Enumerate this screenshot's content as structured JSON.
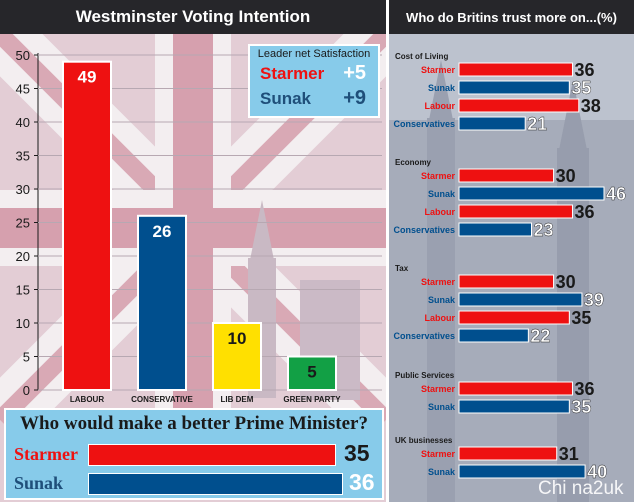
{
  "left_title": "Westminster Voting Intention",
  "right_title": "Who do Britins trust more on...(%)",
  "colors": {
    "labour": "#ee1111",
    "conservative": "#004f8e",
    "libdem": "#ffe000",
    "green": "#12a045",
    "header": "#26262a",
    "box": "#87cbea"
  },
  "satisfaction": {
    "title": "Leader net Satisfaction",
    "rows": [
      {
        "name": "Starmer",
        "value": "+5",
        "color": "#ee1111"
      },
      {
        "name": "Sunak",
        "value": "+9",
        "color": "#1f4f7a"
      }
    ]
  },
  "best_pm": {
    "title": "Who would make a better Prime Minister?",
    "rows": [
      {
        "name": "Starmer",
        "value": 35,
        "color": "#ee1111"
      },
      {
        "name": "Sunak",
        "value": 36,
        "color": "#004f8e"
      }
    ]
  },
  "watermark": "Chi na2uk",
  "chart_data": [
    {
      "type": "bar",
      "title": "Westminster Voting Intention",
      "categories": [
        "LABOUR",
        "CONSERVATIVE",
        "LIB DEM",
        "GREEN PARTY"
      ],
      "values": [
        49,
        26,
        10,
        5
      ],
      "colors": [
        "#ee1111",
        "#004f8e",
        "#ffe000",
        "#12a045"
      ],
      "ylim": [
        0,
        50
      ],
      "yticks": [
        0,
        5,
        10,
        15,
        20,
        25,
        30,
        35,
        40,
        45,
        50
      ]
    },
    {
      "type": "bar",
      "orientation": "horizontal",
      "title": "Who do Britins trust more on...(%)",
      "groups": [
        {
          "name": "Cost of Living",
          "bars": [
            {
              "label": "Starmer",
              "value": 36
            },
            {
              "label": "Sunak",
              "value": 35
            },
            {
              "label": "Labour",
              "value": 38
            },
            {
              "label": "Conservatives",
              "value": 21
            }
          ]
        },
        {
          "name": "Economy",
          "bars": [
            {
              "label": "Starmer",
              "value": 30
            },
            {
              "label": "Sunak",
              "value": 46
            },
            {
              "label": "Labour",
              "value": 36
            },
            {
              "label": "Conservatives",
              "value": 23
            }
          ]
        },
        {
          "name": "Tax",
          "bars": [
            {
              "label": "Starmer",
              "value": 30
            },
            {
              "label": "Sunak",
              "value": 39
            },
            {
              "label": "Labour",
              "value": 35
            },
            {
              "label": "Conservatives",
              "value": 22
            }
          ]
        },
        {
          "name": "Public Services",
          "bars": [
            {
              "label": "Starmer",
              "value": 36
            },
            {
              "label": "Sunak",
              "value": 35
            }
          ]
        },
        {
          "name": "UK businesses",
          "bars": [
            {
              "label": "Starmer",
              "value": 31
            },
            {
              "label": "Sunak",
              "value": 40
            }
          ]
        }
      ]
    }
  ]
}
